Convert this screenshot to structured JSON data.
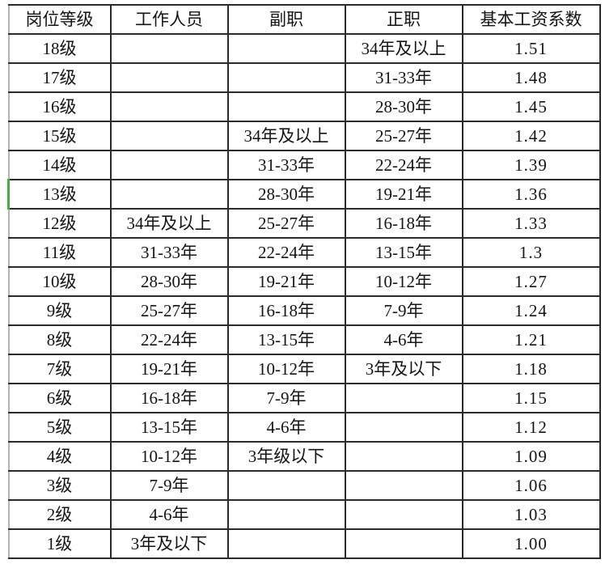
{
  "table": {
    "columns": [
      "岗位等级",
      "工作人员",
      "副职",
      "正职",
      "基本工资系数"
    ],
    "rows": [
      {
        "cells": [
          "18级",
          "",
          "",
          "34年及以上",
          "1.51"
        ]
      },
      {
        "cells": [
          "17级",
          "",
          "",
          "31-33年",
          "1.48"
        ]
      },
      {
        "cells": [
          "16级",
          "",
          "",
          "28-30年",
          "1.45"
        ]
      },
      {
        "cells": [
          "15级",
          "",
          "34年及以上",
          "25-27年",
          "1.42"
        ]
      },
      {
        "cells": [
          "14级",
          "",
          "31-33年",
          "22-24年",
          "1.39"
        ]
      },
      {
        "cells": [
          "13级",
          "",
          "28-30年",
          "19-21年",
          "1.36"
        ]
      },
      {
        "cells": [
          "12级",
          "34年及以上",
          "25-27年",
          "16-18年",
          "1.33"
        ]
      },
      {
        "cells": [
          "11级",
          "31-33年",
          "22-24年",
          "13-15年",
          "1.3"
        ]
      },
      {
        "cells": [
          "10级",
          "28-30年",
          "19-21年",
          "10-12年",
          "1.27"
        ]
      },
      {
        "cells": [
          "9级",
          "25-27年",
          "16-18年",
          "7-9年",
          "1.24"
        ]
      },
      {
        "cells": [
          "8级",
          "22-24年",
          "13-15年",
          "4-6年",
          "1.21"
        ]
      },
      {
        "cells": [
          "7级",
          "19-21年",
          "10-12年",
          "3年及以下",
          "1.18"
        ]
      },
      {
        "cells": [
          "6级",
          "16-18年",
          "7-9年",
          "",
          "1.15"
        ]
      },
      {
        "cells": [
          "5级",
          "13-15年",
          "4-6年",
          "",
          "1.12"
        ]
      },
      {
        "cells": [
          "4级",
          "10-12年",
          "3年级以下",
          "",
          "1.09"
        ]
      },
      {
        "cells": [
          "3级",
          "7-9年",
          "",
          "",
          "1.06"
        ]
      },
      {
        "cells": [
          "2级",
          "4-6年",
          "",
          "",
          "1.03"
        ]
      },
      {
        "cells": [
          "1级",
          "3年及以下",
          "",
          "",
          "1.00"
        ]
      }
    ],
    "selection": {
      "row_index": 5,
      "col_index": 0,
      "color": "#47ab47"
    },
    "colors": {
      "border": "#2b2b2b",
      "outer_left_gridline": "#b4b4b4",
      "selection_green": "#47ab47",
      "text": "#141414",
      "background": "#ffffff"
    }
  }
}
